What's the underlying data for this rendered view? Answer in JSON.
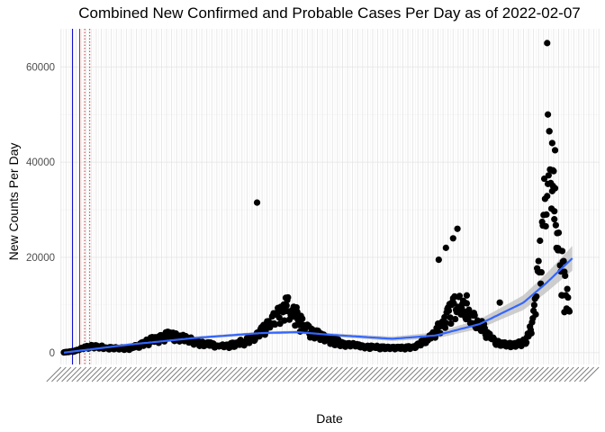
{
  "chart_data": {
    "type": "scatter",
    "title": "Combined New Confirmed and Probable Cases Per Day as of 2022-02-07",
    "xlabel": "Date",
    "ylabel": "New Counts Per Day",
    "x_range": [
      "2020-02-25",
      "2022-03-17"
    ],
    "ylim": [
      -2500,
      68000
    ],
    "y_ticks": [
      0,
      20000,
      40000,
      60000
    ],
    "y_tick_labels": [
      "0",
      "20000",
      "40000",
      "60000"
    ],
    "grid": true,
    "x_tick_labels_note": "weekly date labels rotated ~45 degrees, overlapping and illegible",
    "point_color": "#000000",
    "trend_color": "#3366ff",
    "trend_band_color": "#bdbdbd",
    "reference_lines": [
      {
        "date": "2020-03-13",
        "color": "#0000cc",
        "style": "solid"
      },
      {
        "date": "2020-03-23",
        "color": "#b22222",
        "style": "solid"
      },
      {
        "date": "2020-03-30",
        "color": "#b22222",
        "style": "dotted"
      },
      {
        "date": "2020-04-06",
        "color": "#b22222",
        "style": "dotted"
      }
    ],
    "daily_cases_anchors": [
      {
        "date": "2020-03-01",
        "value": 50
      },
      {
        "date": "2020-03-15",
        "value": 300
      },
      {
        "date": "2020-04-01",
        "value": 1200
      },
      {
        "date": "2020-04-15",
        "value": 1500
      },
      {
        "date": "2020-05-01",
        "value": 1000
      },
      {
        "date": "2020-06-01",
        "value": 900
      },
      {
        "date": "2020-07-01",
        "value": 2800
      },
      {
        "date": "2020-07-25",
        "value": 3900
      },
      {
        "date": "2020-08-15",
        "value": 3100
      },
      {
        "date": "2020-09-15",
        "value": 1900
      },
      {
        "date": "2020-10-15",
        "value": 1500
      },
      {
        "date": "2020-11-15",
        "value": 2800
      },
      {
        "date": "2020-12-01",
        "value": 4500
      },
      {
        "date": "2020-12-20",
        "value": 7500
      },
      {
        "date": "2021-01-05",
        "value": 10500
      },
      {
        "date": "2021-01-15",
        "value": 9000
      },
      {
        "date": "2021-02-01",
        "value": 5500
      },
      {
        "date": "2021-03-01",
        "value": 3000
      },
      {
        "date": "2021-04-01",
        "value": 1800
      },
      {
        "date": "2021-05-01",
        "value": 1300
      },
      {
        "date": "2021-06-01",
        "value": 1000
      },
      {
        "date": "2021-07-01",
        "value": 1200
      },
      {
        "date": "2021-07-20",
        "value": 2800
      },
      {
        "date": "2021-08-10",
        "value": 7000
      },
      {
        "date": "2021-08-25",
        "value": 10000
      },
      {
        "date": "2021-09-05",
        "value": 10500
      },
      {
        "date": "2021-09-20",
        "value": 7500
      },
      {
        "date": "2021-10-05",
        "value": 5500
      },
      {
        "date": "2021-10-20",
        "value": 3000
      },
      {
        "date": "2021-11-01",
        "value": 1800
      },
      {
        "date": "2021-11-20",
        "value": 1800
      },
      {
        "date": "2021-12-05",
        "value": 2500
      },
      {
        "date": "2021-12-15",
        "value": 8000
      },
      {
        "date": "2021-12-25",
        "value": 22000
      },
      {
        "date": "2022-01-05",
        "value": 42000
      },
      {
        "date": "2022-01-12",
        "value": 38000
      },
      {
        "date": "2022-01-20",
        "value": 22000
      },
      {
        "date": "2022-01-27",
        "value": 16000
      },
      {
        "date": "2022-02-03",
        "value": 10000
      }
    ],
    "outliers": [
      {
        "date": "2020-11-25",
        "value": 31500
      },
      {
        "date": "2021-08-05",
        "value": 19500
      },
      {
        "date": "2021-08-15",
        "value": 22000
      },
      {
        "date": "2021-08-25",
        "value": 24000
      },
      {
        "date": "2021-08-31",
        "value": 26000
      },
      {
        "date": "2021-09-13",
        "value": 12000
      },
      {
        "date": "2021-10-29",
        "value": 10500
      },
      {
        "date": "2022-01-03",
        "value": 65000
      },
      {
        "date": "2022-01-04",
        "value": 50000
      },
      {
        "date": "2022-01-06",
        "value": 46500
      },
      {
        "date": "2022-01-10",
        "value": 44000
      },
      {
        "date": "2022-01-11",
        "value": 35000
      },
      {
        "date": "2022-01-14",
        "value": 42500
      },
      {
        "date": "2022-01-13",
        "value": 28000
      },
      {
        "date": "2022-01-18",
        "value": 21500
      },
      {
        "date": "2022-01-24",
        "value": 12000
      },
      {
        "date": "2022-01-27",
        "value": 8500
      }
    ],
    "trend_anchors": [
      {
        "date": "2020-03-01",
        "value": 0
      },
      {
        "date": "2020-06-01",
        "value": 1700
      },
      {
        "date": "2020-09-01",
        "value": 3100
      },
      {
        "date": "2020-12-01",
        "value": 4100
      },
      {
        "date": "2021-01-20",
        "value": 4300
      },
      {
        "date": "2021-03-01",
        "value": 3800
      },
      {
        "date": "2021-06-01",
        "value": 2900
      },
      {
        "date": "2021-08-01",
        "value": 3600
      },
      {
        "date": "2021-10-01",
        "value": 6000
      },
      {
        "date": "2021-12-01",
        "value": 10500
      },
      {
        "date": "2022-01-01",
        "value": 14500
      },
      {
        "date": "2022-02-07",
        "value": 19800
      }
    ]
  }
}
